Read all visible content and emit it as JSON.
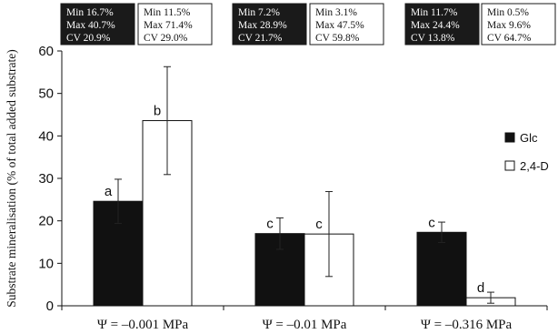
{
  "chart_data": {
    "type": "bar",
    "ylabel": "Substrate mineralisation (% of total added substrate)",
    "ylim": [
      0,
      60
    ],
    "yticks": [
      0,
      10,
      20,
      30,
      40,
      50,
      60
    ],
    "grid": false,
    "legend_placement": "right",
    "categories": [
      "Ψ = –0.001 MPa",
      "Ψ = –0.01 MPa",
      "Ψ = –0.316 MPa"
    ],
    "series": [
      {
        "name": "Glc",
        "color": "#111111",
        "values": [
          24.6,
          17.0,
          17.3
        ],
        "errors": [
          5.2,
          3.7,
          2.4
        ],
        "letters": [
          "a",
          "c",
          "c"
        ]
      },
      {
        "name": "2,4-D",
        "color": "#ffffff",
        "values": [
          43.6,
          16.9,
          1.9
        ],
        "errors": [
          12.7,
          10.0,
          1.3
        ],
        "letters": [
          "b",
          "c",
          "d"
        ]
      }
    ],
    "stat_boxes": [
      [
        "Min 16.7%",
        "Max 40.7%",
        "CV 20.9%"
      ],
      [
        "Min 11.5%",
        "Max 71.4%",
        "CV 29.0%"
      ],
      [
        "Min 7.2%",
        "Max 28.9%",
        "CV 21.7%"
      ],
      [
        "Min 3.1%",
        "Max 47.5%",
        "CV 59.8%"
      ],
      [
        "Min 11.7%",
        "Max 24.4%",
        "CV 13.8%"
      ],
      [
        "Min 0.5%",
        "Max 9.6%",
        "CV 64.7%"
      ]
    ]
  }
}
